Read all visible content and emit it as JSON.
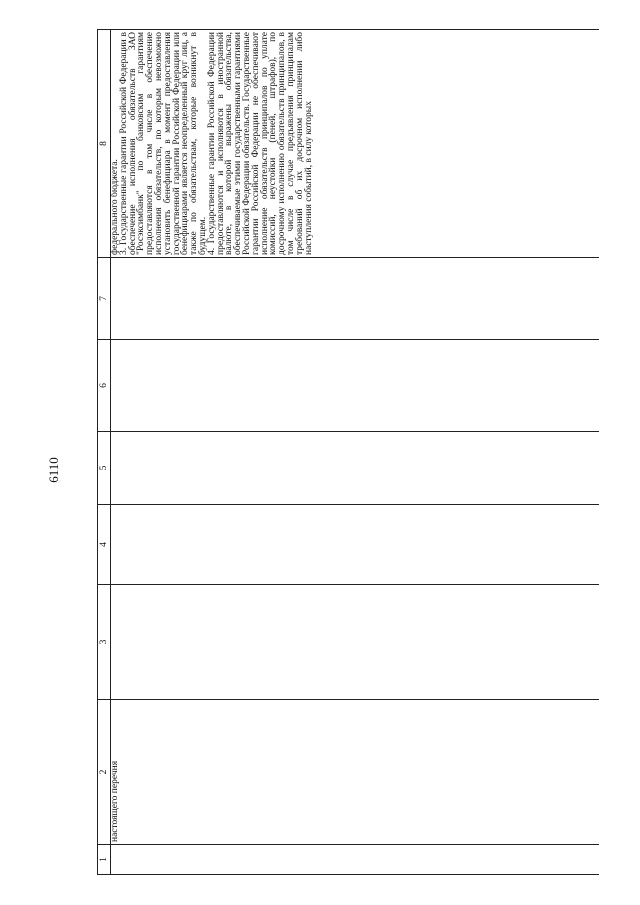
{
  "page_number": "6110",
  "table": {
    "header": [
      "1",
      "2",
      "3",
      "4",
      "5",
      "6",
      "7",
      "8"
    ],
    "rows": [
      {
        "col2": "настоящего перечня",
        "col8": [
          "федерального бюджета.",
          "3. Государственные гарантии Российской Федерации в обеспечение исполнения обязательств ЗАО \"Росэксимбанк\" по банковским гарантиям предоставляются в том числе в обеспечение исполнения обязательств, по которым невозможно установить бенефициара в момент предоставления государственной гарантии Российской Федерации или бенефициарами является неопределенный круг лиц, а также по обязательствам, которые возникнут в будущем.",
          "4. Государственные гарантии Российской Федерации предоставляются и исполняются в иностранной валюте, в которой выражены обязательства, обеспечиваемые этими государственными гарантиями Российской Федерации обязательств. Государственные гарантии Российской Федерации не обеспечивают исполнение обязательств принципалов по уплате комиссий, неустойки (пеней, штрафов), по досрочному исполнению обязательств принципалов, в том числе в случае предъявления принципалам требований об их досрочном исполнении либо наступления событий, в силу которых"
        ]
      }
    ]
  }
}
